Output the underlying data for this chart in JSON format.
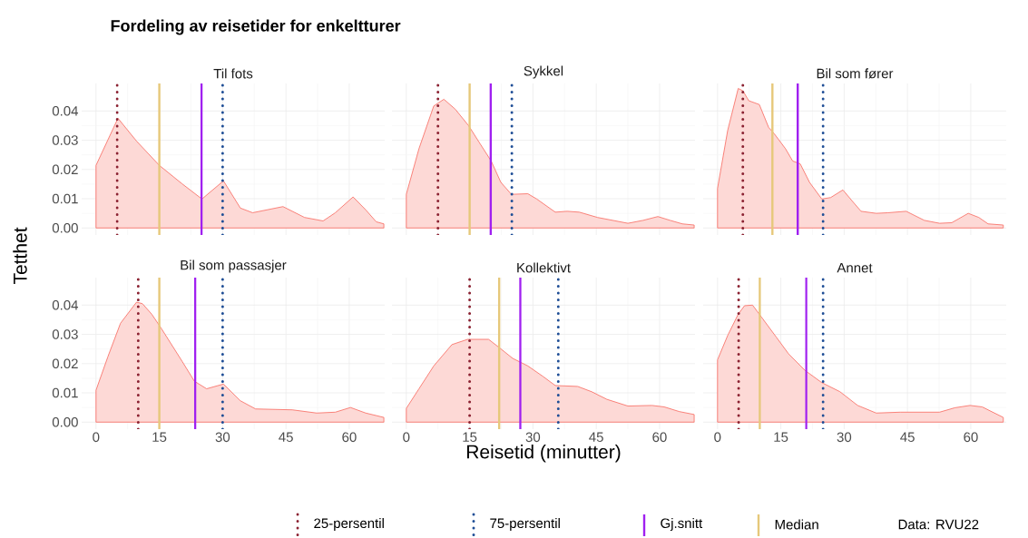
{
  "chart_data": [
    {
      "type": "area",
      "title": "Til fots",
      "annotations": [
        "Fordeling av reisetider for enkeltturer",
        "Data: RVU22"
      ],
      "ylabel": "Tetthet",
      "legend": "bottom",
      "grid": true,
      "tick_labels": "y",
      "xlim": [
        -3.4,
        68.4
      ],
      "ylim": [
        -0.0024,
        0.0494
      ],
      "xticks": [
        0,
        15,
        30,
        45,
        60
      ],
      "yticks": [
        {
          "value": 0,
          "label": "0.00"
        },
        0.01,
        0.02,
        0.03,
        0.04
      ],
      "series": [
        {
          "color": "#f8766d",
          "x": [
            0,
            5.2,
            9.6,
            15,
            20.4,
            25.1,
            30.2,
            34.2,
            37.1,
            44.3,
            49.4,
            53.8,
            56.7,
            60.9,
            63.9,
            66.4,
            68.2
          ],
          "values": [
            0.0214,
            0.0375,
            0.0297,
            0.0214,
            0.0151,
            0.0099,
            0.0161,
            0.0068,
            0.0052,
            0.0073,
            0.0036,
            0.0024,
            0.0052,
            0.0106,
            0.0062,
            0.0021,
            0.0014
          ]
        }
      ],
      "ref_lines": [
        {
          "axis": "x",
          "value": 5,
          "label": "25-persentil",
          "color": "#8b2232",
          "line_style": "dotted"
        },
        {
          "axis": "x",
          "value": 30,
          "label": "75-persentil",
          "color": "#1f4e96",
          "line_style": "dotted"
        },
        {
          "axis": "x",
          "value": 25,
          "label": "Gj.snitt",
          "color": "#a020f0",
          "line_style": "solid"
        },
        {
          "axis": "x",
          "value": 15,
          "label": "Median",
          "color": "#e6c87a",
          "line_style": "solid"
        }
      ]
    },
    {
      "type": "area",
      "title": "Sykkel",
      "grid": true,
      "tick_labels": false,
      "xlim": [
        -3.4,
        68.4
      ],
      "ylim": [
        -0.0024,
        0.0494
      ],
      "xticks": [
        0,
        15,
        30,
        45,
        60
      ],
      "yticks": [
        0,
        0.01,
        0.02,
        0.03,
        0.04
      ],
      "series": [
        {
          "color": "#f8766d",
          "x": [
            0,
            3.0,
            6.5,
            8.9,
            11.6,
            14.8,
            17.3,
            20.1,
            22.4,
            24.9,
            28.8,
            30.9,
            35.3,
            38.1,
            41.0,
            45.3,
            52.5,
            56.1,
            59.6,
            62.5,
            65.4,
            68.2
          ],
          "values": [
            0.0115,
            0.0271,
            0.0417,
            0.044,
            0.0406,
            0.0349,
            0.0292,
            0.0229,
            0.0156,
            0.0115,
            0.0117,
            0.0099,
            0.0054,
            0.0057,
            0.0054,
            0.0036,
            0.0016,
            0.0026,
            0.0039,
            0.0026,
            0.0014,
            0.001
          ]
        }
      ],
      "ref_lines": [
        {
          "axis": "x",
          "value": 7.5,
          "color": "#8b2232",
          "line_style": "dotted"
        },
        {
          "axis": "x",
          "value": 25,
          "color": "#1f4e96",
          "line_style": "dotted"
        },
        {
          "axis": "x",
          "value": 20,
          "color": "#a020f0",
          "line_style": "solid"
        },
        {
          "axis": "x",
          "value": 15,
          "color": "#e6c87a",
          "line_style": "solid"
        }
      ]
    },
    {
      "type": "area",
      "title": "Bil som fører",
      "grid": true,
      "tick_labels": false,
      "xlim": [
        -3.4,
        68.4
      ],
      "ylim": [
        -0.0024,
        0.0494
      ],
      "xticks": [
        0,
        15,
        30,
        45,
        60
      ],
      "yticks": [
        0,
        0.01,
        0.02,
        0.03,
        0.04
      ],
      "series": [
        {
          "color": "#f8766d",
          "x": [
            0,
            2.4,
            4.9,
            6.0,
            7.4,
            9.9,
            12.1,
            13.5,
            16.1,
            17.8,
            19.6,
            21.8,
            24.7,
            26.8,
            29.7,
            31.8,
            34.0,
            37.6,
            40.4,
            44.7,
            49.0,
            52.6,
            55.5,
            59.4,
            61.9,
            64.1,
            67.7
          ],
          "values": [
            0.0135,
            0.0333,
            0.0477,
            0.0469,
            0.0435,
            0.0422,
            0.0344,
            0.0321,
            0.0271,
            0.0229,
            0.0219,
            0.0156,
            0.0099,
            0.0104,
            0.013,
            0.0094,
            0.0057,
            0.005,
            0.0052,
            0.0057,
            0.0026,
            0.0016,
            0.0018,
            0.005,
            0.0036,
            0.0014,
            0.001
          ]
        }
      ],
      "ref_lines": [
        {
          "axis": "x",
          "value": 6,
          "color": "#8b2232",
          "line_style": "dotted"
        },
        {
          "axis": "x",
          "value": 25,
          "color": "#1f4e96",
          "line_style": "dotted"
        },
        {
          "axis": "x",
          "value": 19,
          "color": "#a020f0",
          "line_style": "solid"
        },
        {
          "axis": "x",
          "value": 13,
          "color": "#e6c87a",
          "line_style": "solid"
        }
      ]
    },
    {
      "type": "area",
      "title": "Bil som passasjer",
      "grid": true,
      "xlim": [
        -3.4,
        68.4
      ],
      "ylim": [
        -0.0024,
        0.0494
      ],
      "xticks": [
        0,
        15,
        30,
        45,
        60
      ],
      "yticks": [
        {
          "value": 0,
          "label": "0.00"
        },
        0.01,
        0.02,
        0.03,
        0.04
      ],
      "series": [
        {
          "color": "#f8766d",
          "x": [
            0,
            2.8,
            5.8,
            9.6,
            11.0,
            13.2,
            15.4,
            20.4,
            23.3,
            26.2,
            30.2,
            34.2,
            37.8,
            46.5,
            52.3,
            56.7,
            60.3,
            63.9,
            68.2
          ],
          "values": [
            0.0109,
            0.0223,
            0.0338,
            0.041,
            0.0405,
            0.0369,
            0.0322,
            0.0208,
            0.014,
            0.0114,
            0.013,
            0.0073,
            0.0045,
            0.0042,
            0.0031,
            0.0034,
            0.005,
            0.0031,
            0.0016
          ]
        }
      ],
      "ref_lines": [
        {
          "axis": "x",
          "value": 10,
          "color": "#8b2232",
          "line_style": "dotted"
        },
        {
          "axis": "x",
          "value": 30,
          "color": "#1f4e96",
          "line_style": "dotted"
        },
        {
          "axis": "x",
          "value": 23.5,
          "color": "#a020f0",
          "line_style": "solid"
        },
        {
          "axis": "x",
          "value": 15,
          "color": "#e6c87a",
          "line_style": "solid"
        }
      ]
    },
    {
      "type": "area",
      "title": "Kollektivt",
      "xlabel": "Reisetid (minutter)",
      "grid": true,
      "tick_labels": "x",
      "xlim": [
        -3.4,
        68.4
      ],
      "ylim": [
        -0.0024,
        0.0494
      ],
      "xticks": [
        0,
        15,
        30,
        45,
        60
      ],
      "yticks": [
        0,
        0.01,
        0.02,
        0.03,
        0.04
      ],
      "series": [
        {
          "color": "#f8766d",
          "x": [
            0,
            3.0,
            6.5,
            10.8,
            14.5,
            19.5,
            22.0,
            25.2,
            28.8,
            32.4,
            35.3,
            40.6,
            43.9,
            47.5,
            52.5,
            58.2,
            61.1,
            64.7,
            68.2
          ],
          "values": [
            0.0047,
            0.0114,
            0.0192,
            0.0265,
            0.0283,
            0.0283,
            0.0255,
            0.0218,
            0.0192,
            0.0156,
            0.0125,
            0.0122,
            0.0104,
            0.0078,
            0.0055,
            0.0057,
            0.0052,
            0.0036,
            0.0026
          ]
        }
      ],
      "ref_lines": [
        {
          "axis": "x",
          "value": 15,
          "color": "#8b2232",
          "line_style": "dotted"
        },
        {
          "axis": "x",
          "value": 36,
          "color": "#1f4e96",
          "line_style": "dotted"
        },
        {
          "axis": "x",
          "value": 27,
          "color": "#a020f0",
          "line_style": "solid"
        },
        {
          "axis": "x",
          "value": 22,
          "color": "#e6c87a",
          "line_style": "solid"
        }
      ]
    },
    {
      "type": "area",
      "title": "Annet",
      "grid": true,
      "tick_labels": "x",
      "xlim": [
        -3.4,
        68.4
      ],
      "ylim": [
        -0.0024,
        0.0494
      ],
      "xticks": [
        0,
        15,
        30,
        45,
        60
      ],
      "yticks": [
        0,
        0.01,
        0.02,
        0.03,
        0.04
      ],
      "series": [
        {
          "color": "#f8766d",
          "x": [
            0,
            2.4,
            4.9,
            6.4,
            8.3,
            9.9,
            13.9,
            16.8,
            20.7,
            24.7,
            29.0,
            33.2,
            37.6,
            43.3,
            52.6,
            56.2,
            59.8,
            62.7,
            67.7
          ],
          "values": [
            0.0213,
            0.0296,
            0.0369,
            0.0398,
            0.04,
            0.0369,
            0.0291,
            0.0234,
            0.0177,
            0.0135,
            0.0104,
            0.0057,
            0.0031,
            0.0034,
            0.0034,
            0.0049,
            0.0057,
            0.0052,
            0.0016
          ]
        }
      ],
      "ref_lines": [
        {
          "axis": "x",
          "value": 5,
          "color": "#8b2232",
          "line_style": "dotted"
        },
        {
          "axis": "x",
          "value": 25,
          "color": "#1f4e96",
          "line_style": "dotted"
        },
        {
          "axis": "x",
          "value": 21,
          "color": "#a020f0",
          "line_style": "solid"
        },
        {
          "axis": "x",
          "value": 10,
          "color": "#e6c87a",
          "line_style": "solid"
        }
      ]
    }
  ]
}
